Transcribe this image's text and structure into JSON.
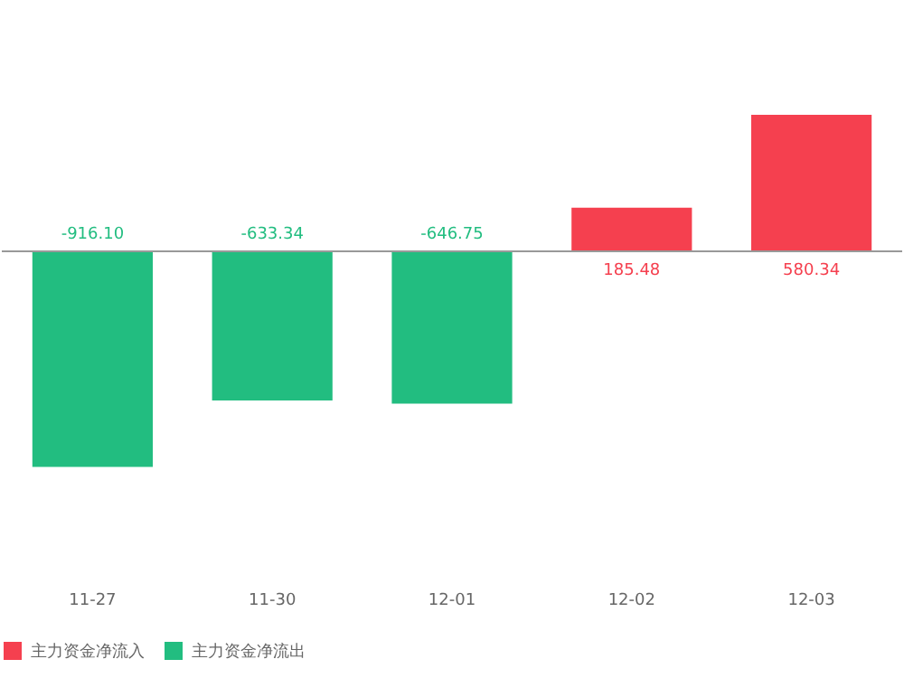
{
  "chart_data": {
    "type": "bar",
    "categories": [
      "11-27",
      "11-30",
      "12-01",
      "12-02",
      "12-03"
    ],
    "series": [
      {
        "name": "主力资金净流入",
        "color": "#f5404f",
        "values": [
          null,
          null,
          null,
          185.48,
          580.34
        ],
        "value_labels": [
          null,
          null,
          null,
          "185.48",
          "580.34"
        ]
      },
      {
        "name": "主力资金净流出",
        "color": "#22bd80",
        "values": [
          -916.1,
          -633.34,
          -646.75,
          null,
          null
        ],
        "value_labels": [
          "-916.10",
          "-633.34",
          "-646.75",
          null,
          null
        ]
      }
    ],
    "legend": "bottom",
    "grid": false
  }
}
